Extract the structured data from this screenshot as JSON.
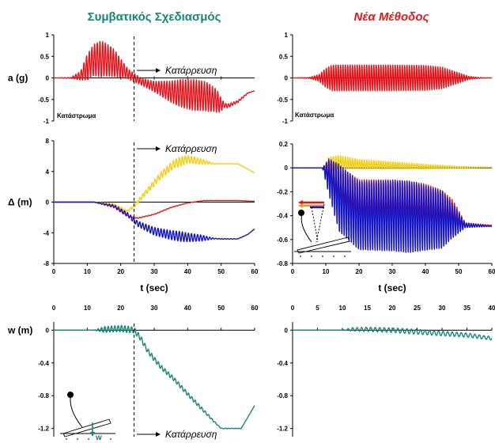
{
  "titles": {
    "left": "Συμβατικός Σχεδιασμός",
    "right": "Νέα Μέθοδος"
  },
  "labels": {
    "collapse": "Κατάρρευση",
    "deck": "Κατάστρωμα",
    "time_axis": "t (sec)",
    "w_marker": "w"
  },
  "colors": {
    "red": "#e8141c",
    "yellow": "#f2cf14",
    "blue": "#1414c8",
    "teal": "#13857b",
    "orange": "#f29a14"
  },
  "chart_data": [
    {
      "id": "acc-conventional",
      "type": "line",
      "ylabel": "a (g)",
      "xlabel": "",
      "xlim": [
        0,
        60
      ],
      "ylim": [
        -1,
        1
      ],
      "yticks": [
        1,
        0.5,
        0,
        -0.5,
        -1
      ],
      "x_ticks_shown": false,
      "annotations": [
        "Κατάρρευση",
        "Κατάστρωμα"
      ],
      "collapse_time": 24,
      "series": [
        {
          "color": "red",
          "envelope": [
            [
              0,
              0
            ],
            [
              5,
              0
            ],
            [
              8,
              0.05
            ],
            [
              10,
              0.25
            ],
            [
              12,
              0.42
            ],
            [
              15,
              0.44
            ],
            [
              18,
              0.35
            ],
            [
              20,
              0.22
            ],
            [
              23,
              0.05
            ],
            [
              26,
              -0.08
            ],
            [
              30,
              -0.2
            ],
            [
              35,
              -0.32
            ],
            [
              40,
              -0.38
            ],
            [
              45,
              -0.42
            ],
            [
              48,
              -0.5
            ],
            [
              50,
              -0.62
            ],
            [
              52,
              -0.65
            ],
            [
              55,
              -0.55
            ],
            [
              58,
              -0.35
            ],
            [
              60,
              -0.3
            ]
          ],
          "amplitude": [
            [
              0,
              0
            ],
            [
              5,
              0.01
            ],
            [
              8,
              0.1
            ],
            [
              10,
              0.3
            ],
            [
              14,
              0.42
            ],
            [
              18,
              0.32
            ],
            [
              22,
              0.12
            ],
            [
              26,
              0.08
            ],
            [
              30,
              0.12
            ],
            [
              34,
              0.22
            ],
            [
              38,
              0.32
            ],
            [
              42,
              0.36
            ],
            [
              46,
              0.33
            ],
            [
              49,
              0.25
            ],
            [
              51,
              0.05
            ],
            [
              60,
              0
            ]
          ],
          "freq": 1.25
        }
      ]
    },
    {
      "id": "acc-new",
      "type": "line",
      "ylabel": "",
      "xlabel": "",
      "xlim": [
        0,
        60
      ],
      "ylim": [
        -1,
        1
      ],
      "yticks": [
        1,
        0.5,
        0,
        -0.5,
        -1
      ],
      "x_ticks_shown": false,
      "annotations": [
        "Κατάστρωμα"
      ],
      "series": [
        {
          "color": "red",
          "envelope": [
            [
              0,
              0
            ],
            [
              60,
              0
            ]
          ],
          "amplitude": [
            [
              0,
              0
            ],
            [
              5,
              0.01
            ],
            [
              8,
              0.08
            ],
            [
              10,
              0.22
            ],
            [
              12,
              0.3
            ],
            [
              30,
              0.3
            ],
            [
              40,
              0.29
            ],
            [
              45,
              0.25
            ],
            [
              50,
              0.12
            ],
            [
              53,
              0.04
            ],
            [
              56,
              0.01
            ],
            [
              60,
              0
            ]
          ],
          "freq": 1.4
        }
      ]
    },
    {
      "id": "disp-conventional",
      "type": "line",
      "ylabel": "Δ (m)",
      "xlabel": "t (sec)",
      "xlim": [
        0,
        60
      ],
      "ylim": [
        -8,
        8
      ],
      "xticks": [
        0,
        10,
        20,
        30,
        40,
        50,
        60
      ],
      "yticks": [
        8,
        4,
        0,
        -4,
        -8
      ],
      "annotations": [
        "Κατάρρευση"
      ],
      "collapse_time": 24,
      "series": [
        {
          "color": "yellow",
          "envelope": [
            [
              0,
              0
            ],
            [
              12,
              0
            ],
            [
              18,
              -0.3
            ],
            [
              22,
              -1.2
            ],
            [
              24,
              -0.5
            ],
            [
              28,
              1.5
            ],
            [
              32,
              3.5
            ],
            [
              36,
              5
            ],
            [
              40,
              5.6
            ],
            [
              44,
              5.3
            ],
            [
              48,
              5
            ],
            [
              55,
              5
            ],
            [
              60,
              3.8
            ]
          ],
          "amplitude": [
            [
              0,
              0
            ],
            [
              12,
              0
            ],
            [
              16,
              0.1
            ],
            [
              22,
              0.15
            ],
            [
              30,
              0.4
            ],
            [
              38,
              0.6
            ],
            [
              44,
              0.35
            ],
            [
              48,
              0.05
            ],
            [
              60,
              0
            ]
          ],
          "freq": 1.1
        },
        {
          "color": "red",
          "envelope": [
            [
              0,
              0
            ],
            [
              12,
              0
            ],
            [
              18,
              -0.6
            ],
            [
              22,
              -1.8
            ],
            [
              25,
              -2.1
            ],
            [
              30,
              -1.6
            ],
            [
              35,
              -0.7
            ],
            [
              40,
              -0.1
            ],
            [
              45,
              0.2
            ],
            [
              50,
              0.2
            ],
            [
              55,
              0.2
            ],
            [
              60,
              0.1
            ]
          ],
          "amplitude": [
            [
              0,
              0
            ],
            [
              12,
              0
            ],
            [
              18,
              0.15
            ],
            [
              26,
              0.05
            ],
            [
              60,
              0
            ]
          ],
          "freq": 1.1
        },
        {
          "color": "blue",
          "envelope": [
            [
              0,
              0
            ],
            [
              12,
              0
            ],
            [
              18,
              -0.5
            ],
            [
              22,
              -1.6
            ],
            [
              25,
              -2.8
            ],
            [
              30,
              -3.8
            ],
            [
              35,
              -4.3
            ],
            [
              40,
              -4.6
            ],
            [
              45,
              -4.7
            ],
            [
              50,
              -4.8
            ],
            [
              55,
              -4.8
            ],
            [
              58,
              -4.2
            ],
            [
              60,
              -3.5
            ]
          ],
          "amplitude": [
            [
              0,
              0
            ],
            [
              12,
              0
            ],
            [
              16,
              0.1
            ],
            [
              22,
              0.25
            ],
            [
              30,
              0.5
            ],
            [
              38,
              0.65
            ],
            [
              44,
              0.4
            ],
            [
              48,
              0.05
            ],
            [
              60,
              0
            ]
          ],
          "freq": 1.1
        }
      ]
    },
    {
      "id": "disp-new",
      "type": "line",
      "ylabel": "",
      "xlabel": "t (sec)",
      "xlim": [
        0,
        60
      ],
      "ylim": [
        -0.8,
        0.2
      ],
      "xticks": [
        0,
        10,
        20,
        30,
        40,
        50,
        60
      ],
      "yticks": [
        0.2,
        0,
        -0.2,
        -0.4,
        -0.6,
        -0.8
      ],
      "series": [
        {
          "color": "yellow",
          "envelope": [
            [
              0,
              0
            ],
            [
              9,
              0
            ],
            [
              11,
              0.03
            ],
            [
              14,
              0.05
            ],
            [
              20,
              0.03
            ],
            [
              30,
              0.02
            ],
            [
              40,
              0.01
            ],
            [
              50,
              0.005
            ],
            [
              60,
              0.005
            ]
          ],
          "amplitude": [
            [
              0,
              0
            ],
            [
              9,
              0
            ],
            [
              11,
              0.06
            ],
            [
              20,
              0.04
            ],
            [
              35,
              0.025
            ],
            [
              48,
              0.01
            ],
            [
              60,
              0
            ]
          ],
          "freq": 1.4
        },
        {
          "color": "red",
          "envelope": [
            [
              0,
              0
            ],
            [
              9,
              0
            ],
            [
              11,
              -0.04
            ],
            [
              14,
              -0.18
            ],
            [
              20,
              -0.3
            ],
            [
              30,
              -0.3
            ],
            [
              40,
              -0.32
            ],
            [
              48,
              -0.38
            ],
            [
              52,
              -0.48
            ],
            [
              60,
              -0.48
            ]
          ],
          "amplitude": [
            [
              0,
              0
            ],
            [
              9,
              0
            ],
            [
              11,
              0.12
            ],
            [
              14,
              0.2
            ],
            [
              35,
              0.2
            ],
            [
              45,
              0.17
            ],
            [
              49,
              0.1
            ],
            [
              52,
              0.02
            ],
            [
              60,
              0
            ]
          ],
          "freq": 1.4
        },
        {
          "color": "blue",
          "envelope": [
            [
              0,
              0
            ],
            [
              9,
              0
            ],
            [
              11,
              -0.08
            ],
            [
              14,
              -0.25
            ],
            [
              20,
              -0.4
            ],
            [
              30,
              -0.4
            ],
            [
              40,
              -0.42
            ],
            [
              48,
              -0.44
            ],
            [
              52,
              -0.48
            ],
            [
              60,
              -0.49
            ]
          ],
          "amplitude": [
            [
              0,
              0
            ],
            [
              9,
              0
            ],
            [
              11,
              0.15
            ],
            [
              14,
              0.28
            ],
            [
              35,
              0.3
            ],
            [
              45,
              0.24
            ],
            [
              49,
              0.12
            ],
            [
              52,
              0.02
            ],
            [
              60,
              0
            ]
          ],
          "freq": 1.4
        }
      ]
    },
    {
      "id": "w-conventional",
      "type": "line",
      "ylabel": "w (m)",
      "xlabel": "",
      "xlim": [
        0,
        60
      ],
      "ylim": [
        -1.3,
        0.1
      ],
      "xticks": [
        0,
        10,
        20,
        30,
        40,
        50,
        60
      ],
      "x_ticks_position": "top",
      "yticks": [
        0,
        -0.4,
        -0.8,
        -1.2
      ],
      "annotations": [
        "Κατάρρευση"
      ],
      "collapse_time": 24,
      "series": [
        {
          "color": "teal",
          "envelope": [
            [
              0,
              0
            ],
            [
              12,
              0
            ],
            [
              16,
              0.01
            ],
            [
              20,
              0.02
            ],
            [
              24,
              0
            ],
            [
              26,
              -0.1
            ],
            [
              28,
              -0.25
            ],
            [
              32,
              -0.45
            ],
            [
              36,
              -0.6
            ],
            [
              40,
              -0.78
            ],
            [
              44,
              -0.95
            ],
            [
              48,
              -1.12
            ],
            [
              50,
              -1.2
            ],
            [
              56,
              -1.2
            ],
            [
              60,
              -0.92
            ]
          ],
          "amplitude": [
            [
              0,
              0
            ],
            [
              12,
              0
            ],
            [
              15,
              0.035
            ],
            [
              22,
              0.04
            ],
            [
              26,
              0.03
            ],
            [
              34,
              0.025
            ],
            [
              44,
              0.02
            ],
            [
              49,
              0.005
            ],
            [
              60,
              0
            ]
          ],
          "freq": 1.0
        }
      ]
    },
    {
      "id": "w-new",
      "type": "line",
      "ylabel": "",
      "xlabel": "",
      "xlim": [
        0,
        40
      ],
      "ylim": [
        -1.3,
        0.1
      ],
      "xticks": [
        0,
        5,
        10,
        15,
        20,
        25,
        30,
        35,
        40
      ],
      "x_ticks_position": "top",
      "yticks": [
        0,
        -0.4,
        -0.8,
        -1.2
      ],
      "series": [
        {
          "color": "teal",
          "envelope": [
            [
              0,
              0
            ],
            [
              10,
              0
            ],
            [
              12,
              0.01
            ],
            [
              15,
              0.01
            ],
            [
              20,
              0
            ],
            [
              25,
              -0.02
            ],
            [
              30,
              -0.04
            ],
            [
              35,
              -0.06
            ],
            [
              40,
              -0.1
            ]
          ],
          "amplitude": [
            [
              0,
              0
            ],
            [
              10,
              0
            ],
            [
              12,
              0.02
            ],
            [
              15,
              0.025
            ],
            [
              25,
              0.03
            ],
            [
              35,
              0.025
            ],
            [
              40,
              0.02
            ]
          ],
          "freq": 1.1
        }
      ]
    }
  ]
}
